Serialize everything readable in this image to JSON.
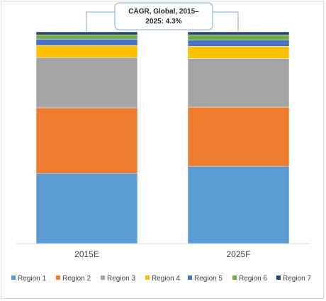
{
  "chart_data": {
    "type": "bar",
    "stacked": true,
    "normalized": true,
    "categories": [
      "2015E",
      "2025F"
    ],
    "series": [
      {
        "name": "Region 1",
        "color": "#5b9bd5",
        "values": [
          0.332,
          0.365
        ]
      },
      {
        "name": "Region 2",
        "color": "#ed7d31",
        "values": [
          0.31,
          0.28
        ]
      },
      {
        "name": "Region 3",
        "color": "#a5a5a5",
        "values": [
          0.237,
          0.23
        ]
      },
      {
        "name": "Region 4",
        "color": "#ffc000",
        "values": [
          0.057,
          0.057
        ]
      },
      {
        "name": "Region 5",
        "color": "#4472c4",
        "values": [
          0.03,
          0.03
        ]
      },
      {
        "name": "Region 6",
        "color": "#70ad47",
        "values": [
          0.02,
          0.024
        ]
      },
      {
        "name": "Region 7",
        "color": "#264478",
        "values": [
          0.014,
          0.014
        ]
      }
    ],
    "ylim": [
      0,
      1
    ],
    "grid": false,
    "legend_position": "bottom",
    "annotation": "CAGR, Global, 2015–2025: 4.3%"
  }
}
